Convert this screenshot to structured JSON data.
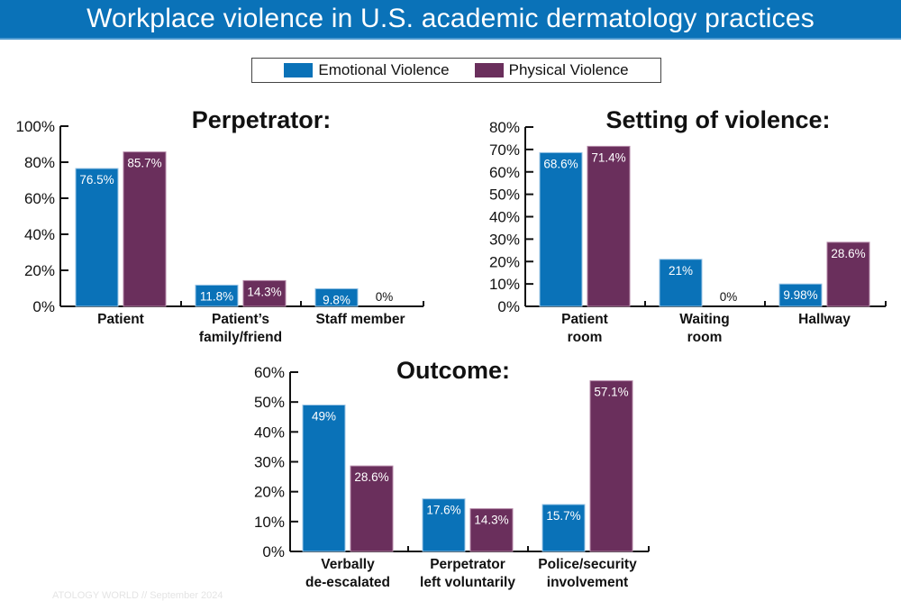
{
  "banner": {
    "title": "Workplace violence in U.S. academic dermatology practices",
    "color": "#0a72b8"
  },
  "legend": {
    "items": [
      {
        "label": "Emotional Violence",
        "color": "#0a72b8"
      },
      {
        "label": "Physical Violence",
        "color": "#6a2f5c"
      }
    ]
  },
  "footer": {
    "text": "ATOLOGY WORLD // September 2024"
  },
  "chart_data": [
    {
      "type": "bar",
      "title": "Perpetrator:",
      "categories": [
        "Patient",
        "Patient’s family/friend",
        "Staff member"
      ],
      "category_lines": [
        [
          "Patient"
        ],
        [
          "Patient’s",
          "family/friend"
        ],
        [
          "Staff member"
        ]
      ],
      "series": [
        {
          "name": "Emotional Violence",
          "values": [
            76.5,
            11.8,
            9.8
          ],
          "labels": [
            "76.5%",
            "11.8%",
            "9.8%"
          ]
        },
        {
          "name": "Physical Violence",
          "values": [
            85.7,
            14.3,
            0
          ],
          "labels": [
            "85.7%",
            "14.3%",
            "0%"
          ]
        }
      ],
      "xlabel": "",
      "ylabel": "",
      "ylim": [
        0,
        100
      ],
      "yticks": [
        0,
        20,
        40,
        60,
        80,
        100
      ],
      "ytick_labels": [
        "0%",
        "20%",
        "40%",
        "60%",
        "80%",
        "100%"
      ],
      "grid": false,
      "legend_position": "top-center (shared)"
    },
    {
      "type": "bar",
      "title": "Setting of violence:",
      "categories": [
        "Patient room",
        "Waiting room",
        "Hallway"
      ],
      "category_lines": [
        [
          "Patient",
          "room"
        ],
        [
          "Waiting",
          "room"
        ],
        [
          "Hallway"
        ]
      ],
      "series": [
        {
          "name": "Emotional Violence",
          "values": [
            68.6,
            21,
            9.98
          ],
          "labels": [
            "68.6%",
            "21%",
            "9.98%"
          ]
        },
        {
          "name": "Physical Violence",
          "values": [
            71.4,
            0,
            28.6
          ],
          "labels": [
            "71.4%",
            "0%",
            "28.6%"
          ]
        }
      ],
      "xlabel": "",
      "ylabel": "",
      "ylim": [
        0,
        80
      ],
      "yticks": [
        0,
        10,
        20,
        30,
        40,
        50,
        60,
        70,
        80
      ],
      "ytick_labels": [
        "0%",
        "10%",
        "20%",
        "30%",
        "40%",
        "50%",
        "60%",
        "70%",
        "80%"
      ],
      "grid": false,
      "legend_position": "top-center (shared)"
    },
    {
      "type": "bar",
      "title": "Outcome:",
      "categories": [
        "Verbally de-escalated",
        "Perpetrator left voluntarily",
        "Police/security involvement"
      ],
      "category_lines": [
        [
          "Verbally",
          "de-escalated"
        ],
        [
          "Perpetrator",
          "left voluntarily"
        ],
        [
          "Police/security",
          "involvement"
        ]
      ],
      "series": [
        {
          "name": "Emotional Violence",
          "values": [
            49,
            17.6,
            15.7
          ],
          "labels": [
            "49%",
            "17.6%",
            "15.7%"
          ]
        },
        {
          "name": "Physical Violence",
          "values": [
            28.6,
            14.3,
            57.1
          ],
          "labels": [
            "28.6%",
            "14.3%",
            "57.1%"
          ]
        }
      ],
      "xlabel": "",
      "ylabel": "",
      "ylim": [
        0,
        60
      ],
      "yticks": [
        0,
        10,
        20,
        30,
        40,
        50,
        60
      ],
      "ytick_labels": [
        "0%",
        "10%",
        "20%",
        "30%",
        "40%",
        "50%",
        "60%"
      ],
      "grid": false,
      "legend_position": "top-center (shared)"
    }
  ]
}
